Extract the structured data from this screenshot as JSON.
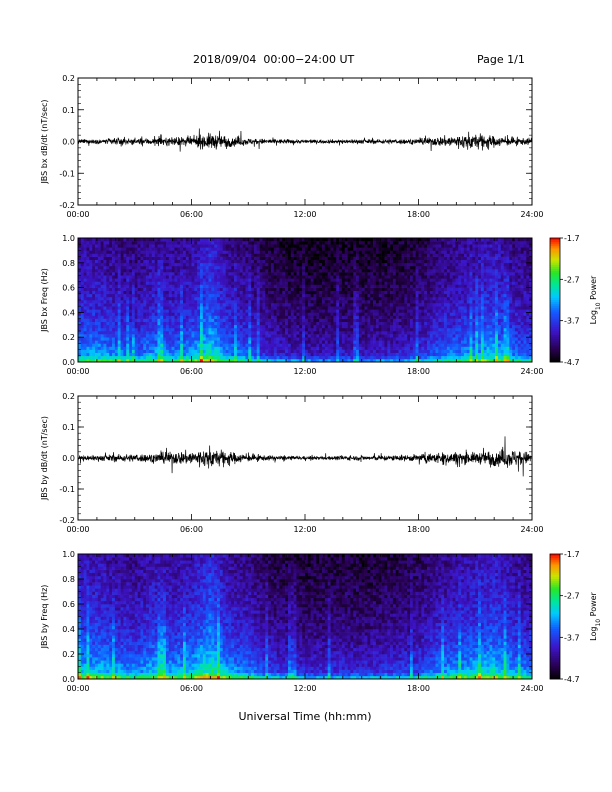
{
  "header": {
    "title": "2018/09/04  00:00−24:00 UT",
    "page": "Page 1/1"
  },
  "x_axis_title": "Universal Time (hh:mm)",
  "time_ticks": [
    "00:00",
    "06:00",
    "12:00",
    "18:00",
    "24:00"
  ],
  "colorbar": {
    "ticks": [
      "-1.7",
      "-2.7",
      "-3.7",
      "-4.7"
    ],
    "label_prefix": "Log",
    "label_sub": "10",
    "label_suffix": " Power"
  },
  "colors": {
    "trace": "#000000",
    "background": "#ffffff"
  },
  "chart_data": [
    {
      "type": "line",
      "ylabel": "JBS bx dB/dt (nT/sec)",
      "ylim": [
        -0.2,
        0.2
      ],
      "yticks": [
        "0.2",
        "0.1",
        "0.0",
        "-0.1",
        "-0.2"
      ],
      "xlim_hours": [
        0,
        24
      ],
      "envelope": {
        "x_hours": [
          0,
          1,
          2,
          3,
          4,
          5,
          6,
          7,
          8,
          9,
          10,
          11,
          12,
          13,
          14,
          15,
          16,
          17,
          18,
          19,
          20,
          21,
          22,
          23,
          24
        ],
        "amplitude": [
          0.012,
          0.013,
          0.018,
          0.016,
          0.02,
          0.022,
          0.026,
          0.045,
          0.03,
          0.018,
          0.014,
          0.012,
          0.01,
          0.01,
          0.011,
          0.012,
          0.012,
          0.013,
          0.014,
          0.025,
          0.035,
          0.045,
          0.03,
          0.02,
          0.018
        ]
      }
    },
    {
      "type": "heatmap",
      "ylabel": "JBS bx Freq (Hz)",
      "ylim": [
        0.0,
        1.0
      ],
      "yticks": [
        "1.0",
        "0.8",
        "0.6",
        "0.4",
        "0.2",
        "0.0"
      ],
      "xlim_hours": [
        0,
        24
      ],
      "zlim_log10_power": [
        -4.7,
        -1.7
      ]
    },
    {
      "type": "line",
      "ylabel": "JBS by dB/dt (nT/sec)",
      "ylim": [
        -0.2,
        0.2
      ],
      "yticks": [
        "0.2",
        "0.1",
        "0.0",
        "-0.1",
        "-0.2"
      ],
      "xlim_hours": [
        0,
        24
      ],
      "envelope": {
        "x_hours": [
          0,
          1,
          2,
          3,
          4,
          5,
          6,
          7,
          8,
          9,
          10,
          11,
          12,
          13,
          14,
          15,
          16,
          17,
          18,
          19,
          20,
          21,
          22,
          23,
          24
        ],
        "amplitude": [
          0.015,
          0.016,
          0.02,
          0.022,
          0.025,
          0.035,
          0.04,
          0.055,
          0.035,
          0.02,
          0.014,
          0.012,
          0.01,
          0.01,
          0.012,
          0.013,
          0.015,
          0.016,
          0.02,
          0.03,
          0.035,
          0.03,
          0.045,
          0.05,
          0.03
        ]
      }
    },
    {
      "type": "heatmap",
      "ylabel": "JBS by Freq (Hz)",
      "ylim": [
        0.0,
        1.0
      ],
      "yticks": [
        "1.0",
        "0.8",
        "0.6",
        "0.4",
        "0.2",
        "0.0"
      ],
      "xlim_hours": [
        0,
        24
      ],
      "zlim_log10_power": [
        -4.7,
        -1.7
      ]
    }
  ]
}
